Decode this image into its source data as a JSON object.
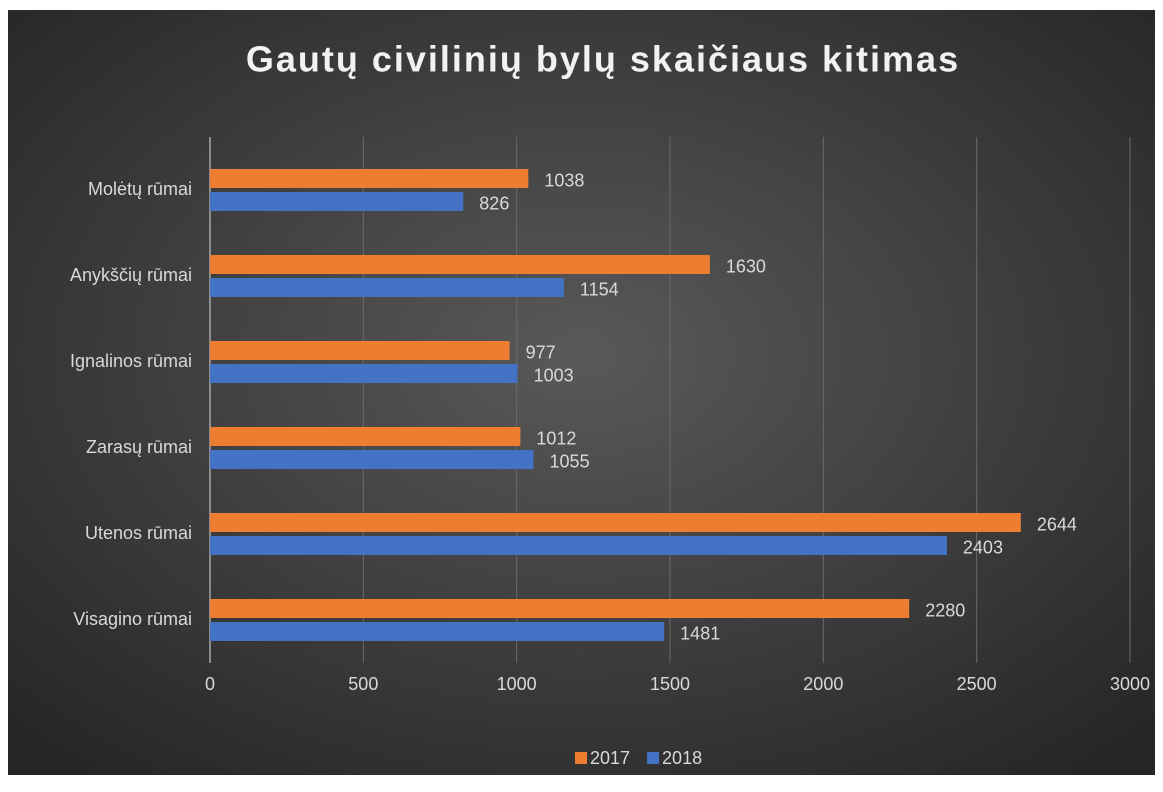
{
  "chart_data": {
    "type": "bar",
    "orientation": "horizontal",
    "title": "Gautų civilinių bylų skaičiaus kitimas",
    "categories": [
      "Molėtų rūmai",
      "Anykščių rūmai",
      "Ignalinos rūmai",
      "Zarasų rūmai",
      "Utenos rūmai",
      "Visagino rūmai"
    ],
    "series": [
      {
        "name": "2017",
        "color": "#ed7d31",
        "values": [
          1038,
          1630,
          977,
          1012,
          2644,
          2280
        ]
      },
      {
        "name": "2018",
        "color": "#4472c4",
        "values": [
          826,
          1154,
          1003,
          1055,
          2403,
          1481
        ]
      }
    ],
    "xlim": [
      0,
      3000
    ],
    "xticks": [
      0,
      500,
      1000,
      1500,
      2000,
      2500,
      3000
    ],
    "grid": true,
    "legend": "bottom"
  }
}
